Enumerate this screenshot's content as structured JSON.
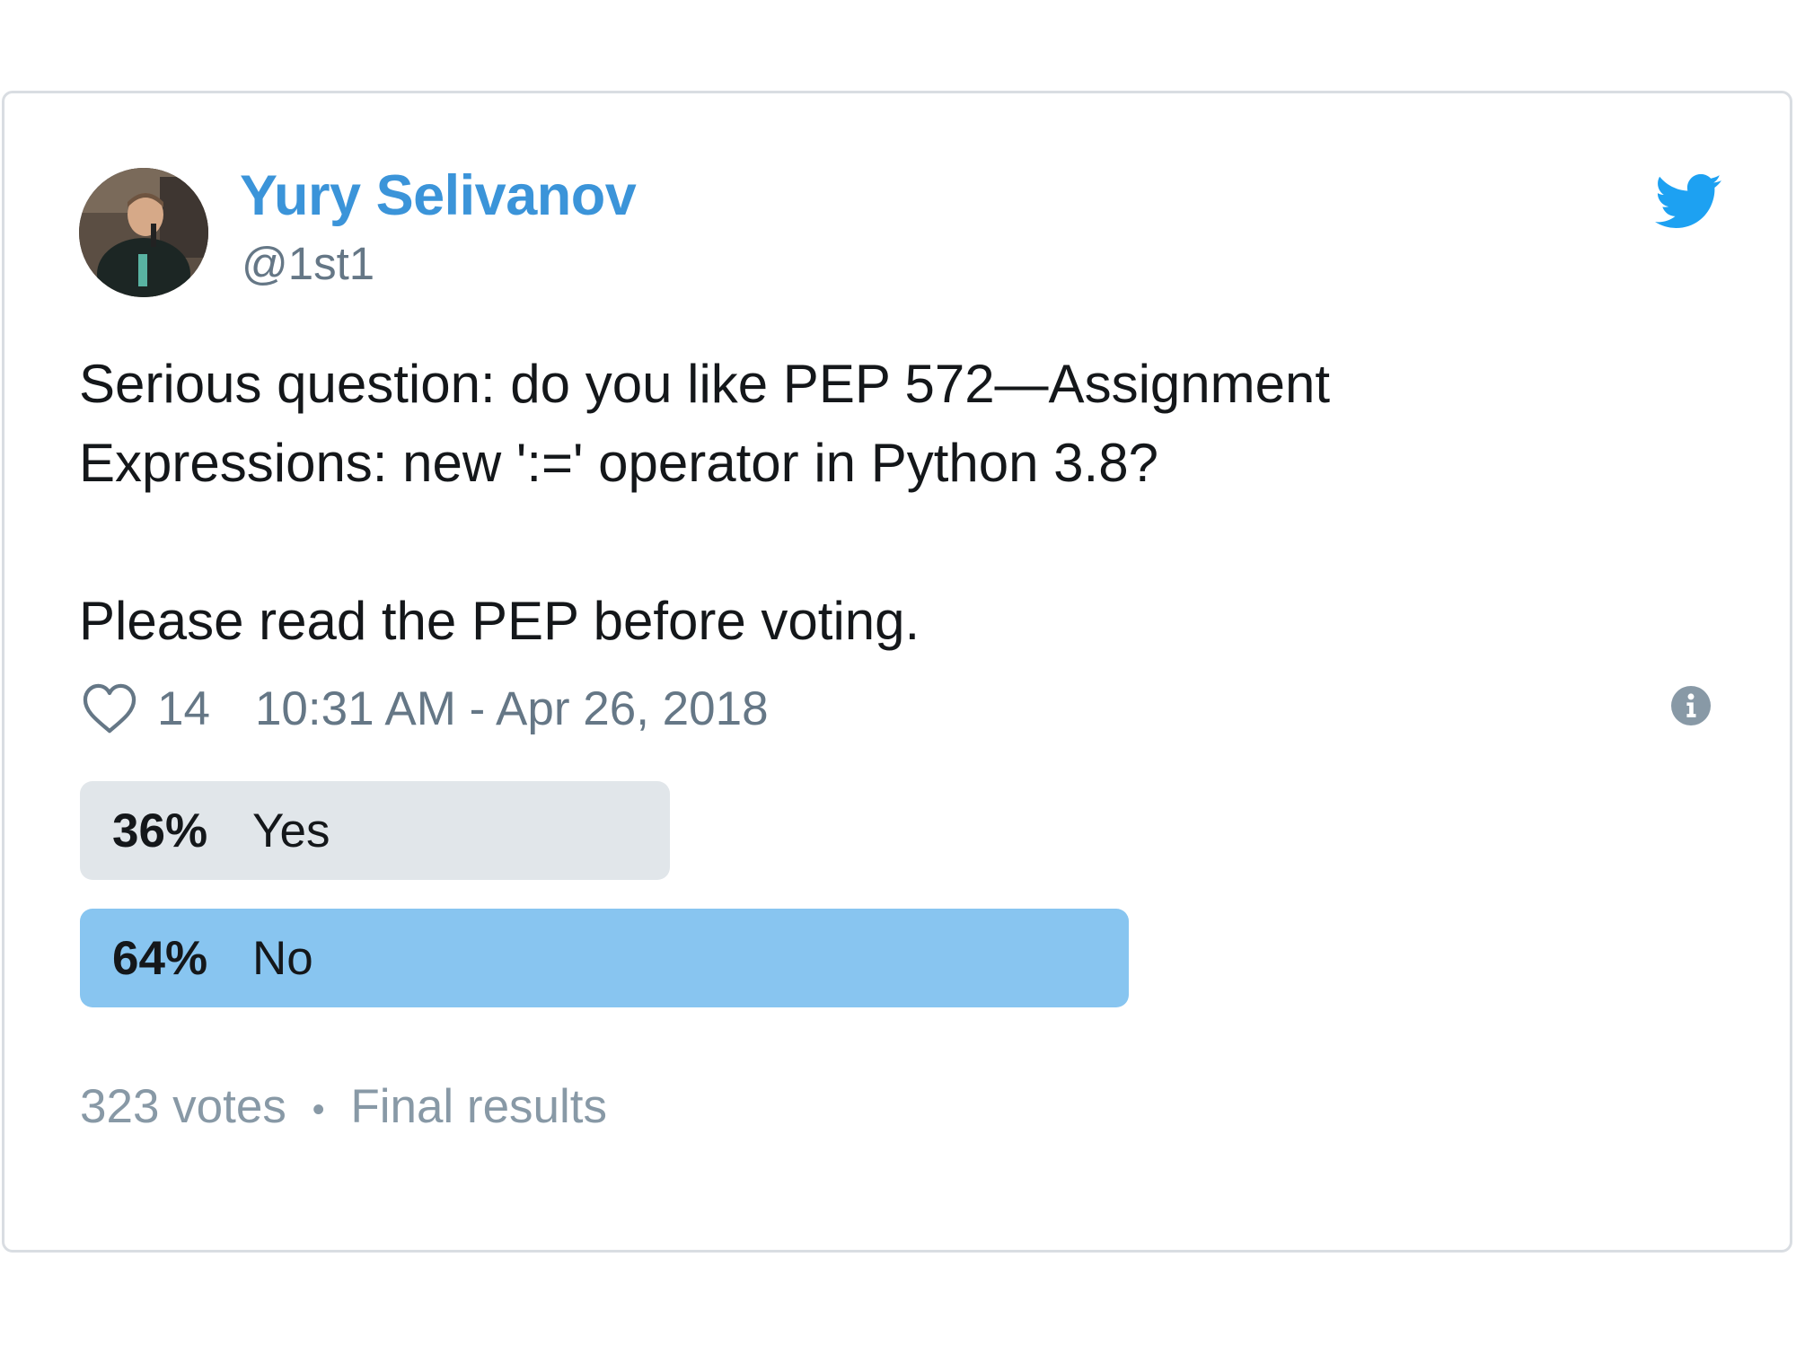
{
  "tweet": {
    "author": {
      "name": "Yury Selivanov",
      "handle": "@1st1"
    },
    "text_lines": [
      "Serious question: do you like PEP 572—Assignment",
      "Expressions: new ':=' operator in Python 3.8?",
      "Please read the PEP before voting."
    ],
    "likes": "14",
    "timestamp": "10:31 AM - Apr 26, 2018",
    "icons": {
      "brand": "twitter-bird-icon",
      "like": "heart-icon",
      "info": "info-icon"
    },
    "colors": {
      "name": "#3b94d9",
      "brand": "#1da1f2",
      "poll_winner": "#88c5f0",
      "poll_other": "#e1e6ea"
    }
  },
  "poll": {
    "options": [
      {
        "percent_label": "36%",
        "label": "Yes",
        "percent": 36
      },
      {
        "percent_label": "64%",
        "label": "No",
        "percent": 64
      }
    ],
    "footer": {
      "votes": "323 votes",
      "separator": "•",
      "status": "Final results"
    }
  }
}
